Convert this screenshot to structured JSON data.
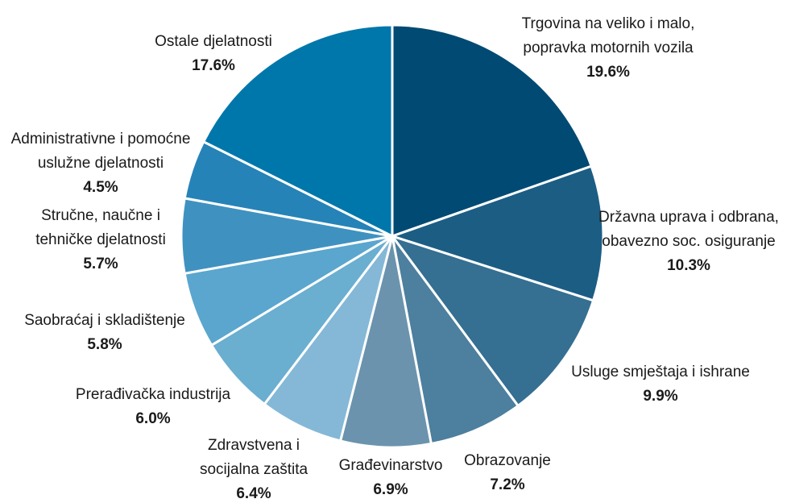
{
  "chart_data": {
    "type": "pie",
    "categories": [
      [
        "Trgovina na veliko i malo,",
        "popravka motornih vozila"
      ],
      [
        "Državna uprava i odbrana,",
        "obavezno soc. osiguranje"
      ],
      [
        "Usluge smještaja i ishrane"
      ],
      [
        "Obrazovanje"
      ],
      [
        "Građevinarstvo"
      ],
      [
        "Zdravstvena i",
        "socijalna zaštita"
      ],
      [
        "Prerađivačka industrija"
      ],
      [
        "Saobraćaj i skladištenje"
      ],
      [
        "Stručne, naučne i",
        "tehničke djelatnosti"
      ],
      [
        "Administrativne i pomoćne",
        "uslužne djelatnosti"
      ],
      [
        "Ostale djelatnosti"
      ]
    ],
    "values": [
      19.6,
      10.3,
      9.9,
      7.2,
      6.9,
      6.4,
      6.0,
      5.8,
      5.7,
      4.5,
      17.6
    ],
    "value_labels": [
      "19.6%",
      "10.3%",
      "9.9%",
      "7.2%",
      "6.9%",
      "6.4%",
      "6.0%",
      "5.8%",
      "5.7%",
      "4.5%",
      "17.6%"
    ],
    "colors": [
      "#004a73",
      "#1c5d84",
      "#356f91",
      "#4d7f9e",
      "#6b93ad",
      "#84b8d6",
      "#6aaed0",
      "#5aa6ce",
      "#3f92c0",
      "#2583b8",
      "#0077ab"
    ]
  }
}
